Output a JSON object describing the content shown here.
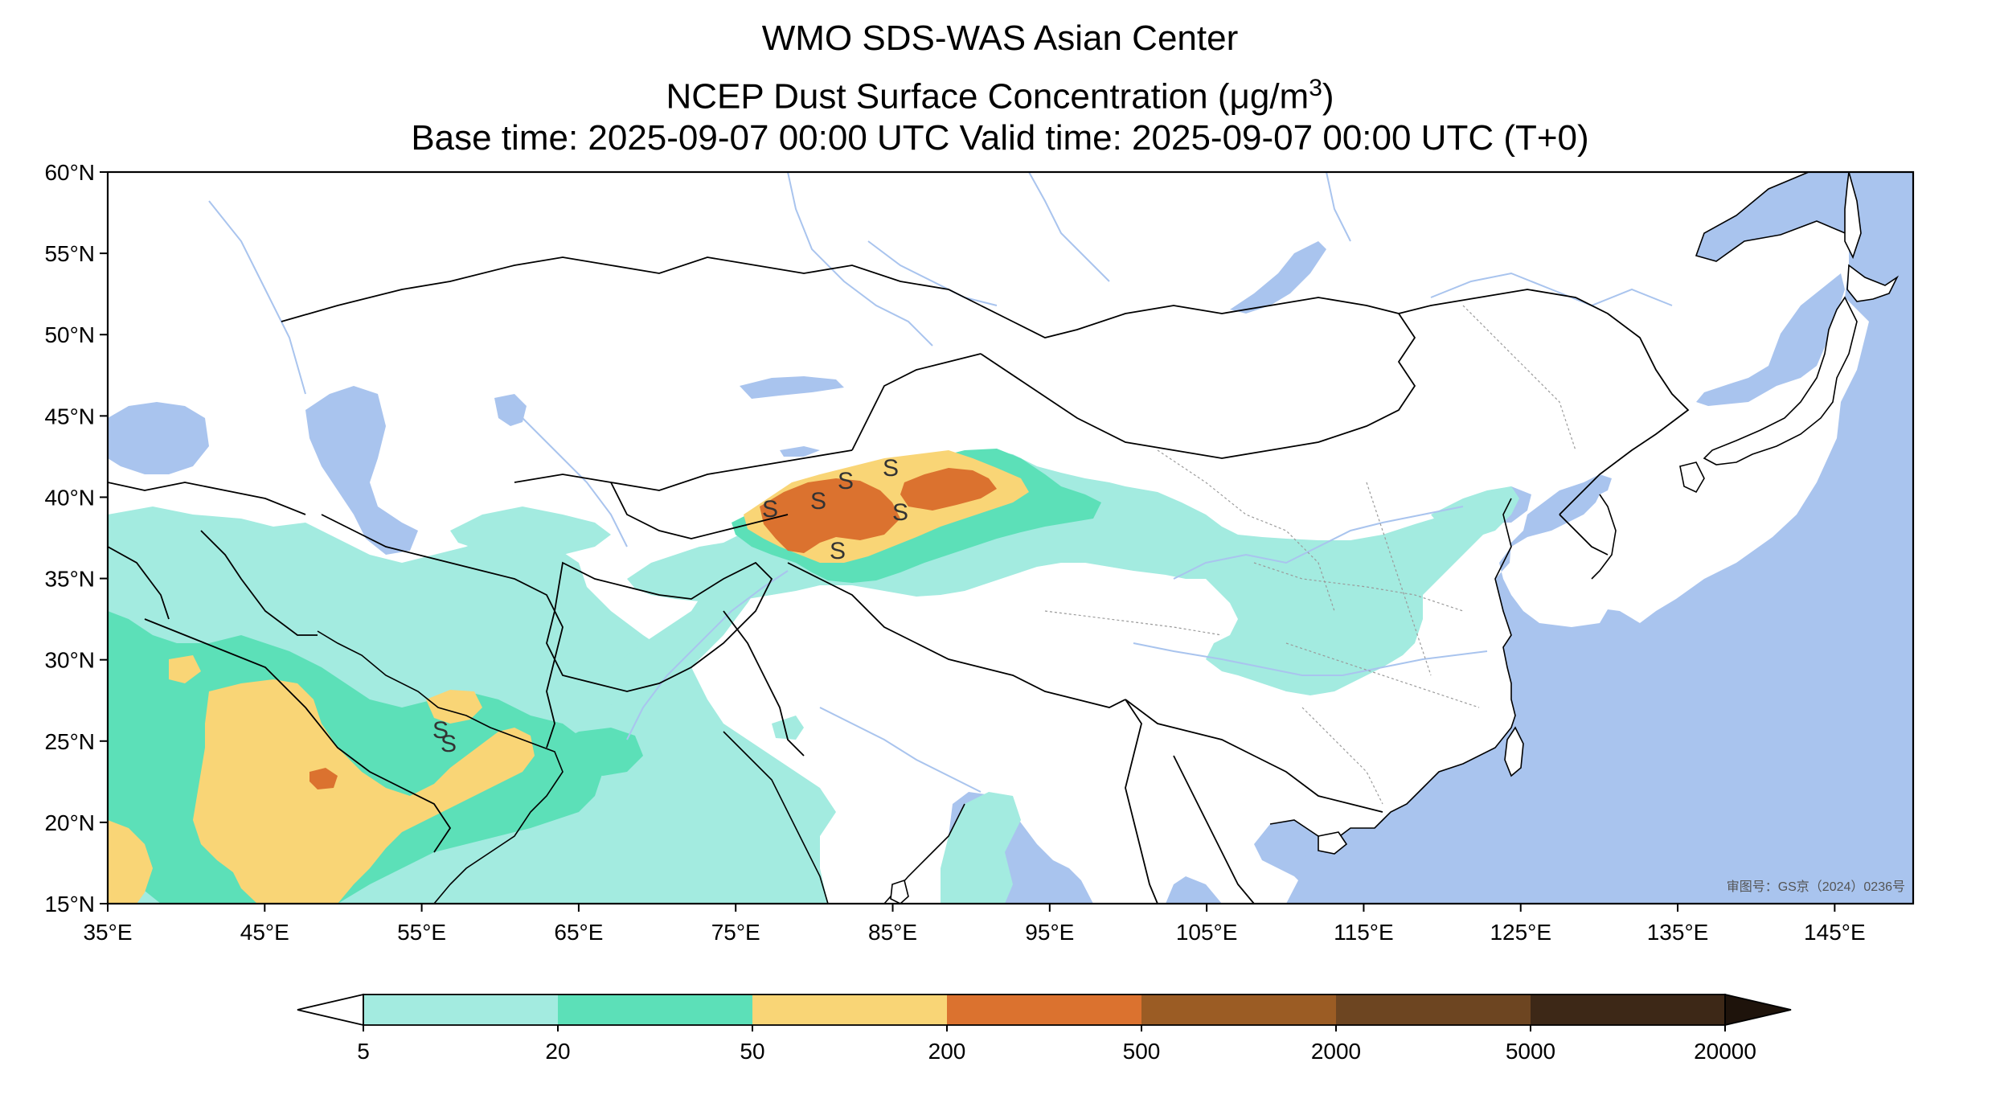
{
  "title": {
    "line1": "WMO SDS-WAS Asian Center",
    "line2_prefix": "NCEP Dust Surface Concentration (",
    "line2_unit": "μg/m",
    "line2_sup": "3",
    "line2_suffix": ")",
    "line3": "Base time: 2025-09-07 00:00 UTC Valid time: 2025-09-07 00:00 UTC (T+0)"
  },
  "map": {
    "lat_ticks": [
      "60°N",
      "55°N",
      "50°N",
      "45°N",
      "40°N",
      "35°N",
      "30°N",
      "25°N",
      "20°N",
      "15°N"
    ],
    "lon_ticks": [
      "35°E",
      "45°E",
      "55°E",
      "65°E",
      "75°E",
      "85°E",
      "95°E",
      "105°E",
      "115°E",
      "125°E",
      "135°E",
      "145°E"
    ],
    "lat_range": [
      15,
      60
    ],
    "lon_range": [
      35,
      150
    ],
    "approval_note": "审图号：GS京（2024）0236号",
    "storm_marker": "S",
    "colors": {
      "ocean": "#a9c4ee",
      "river": "#a9c4ee",
      "land": "#ffffff",
      "border": "#000000",
      "province": "#9a9a9a"
    }
  },
  "colorbar": {
    "labels": [
      "5",
      "20",
      "50",
      "200",
      "500",
      "2000",
      "5000",
      "20000"
    ],
    "colors": [
      "#a3ebe0",
      "#5ce0b8",
      "#f9d576",
      "#db722f",
      "#9b5c24",
      "#6d4521",
      "#3d2817"
    ],
    "under_color": "#ffffff",
    "over_color": "#1e130b"
  }
}
